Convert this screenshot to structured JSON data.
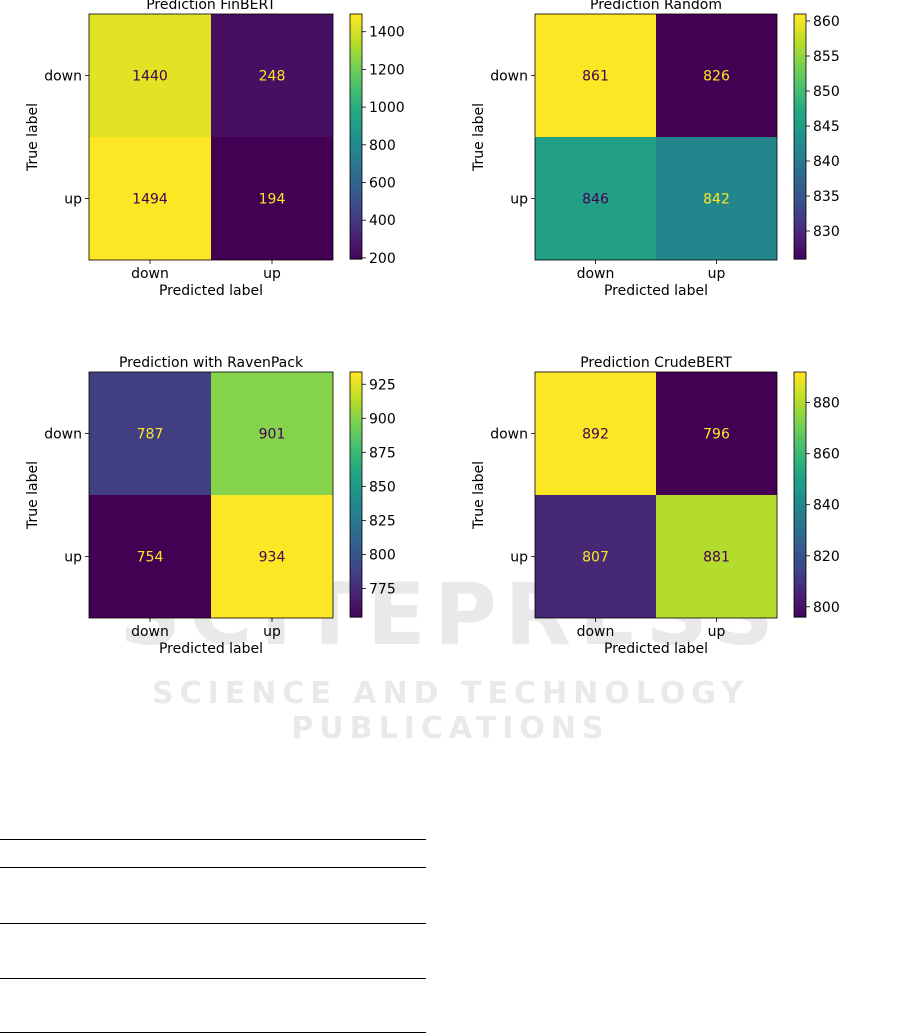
{
  "watermark": {
    "logo_text": "SCITEPRESS",
    "tagline": "SCIENCE AND TECHNOLOGY PUBLICATIONS"
  },
  "chart_data": [
    {
      "type": "heatmap",
      "title": "Prediction FinBERT",
      "xlabel": "Predicted label",
      "ylabel": "True label",
      "x_categories": [
        "down",
        "up"
      ],
      "y_categories": [
        "down",
        "up"
      ],
      "values": [
        [
          1440,
          248
        ],
        [
          1494,
          194
        ]
      ],
      "colorbar": {
        "min": 194,
        "max": 1494,
        "ticks": [
          200,
          400,
          600,
          800,
          1000,
          1200,
          1400
        ]
      },
      "colormap": "viridis"
    },
    {
      "type": "heatmap",
      "title": "Prediction Random",
      "xlabel": "Predicted label",
      "ylabel": "True label",
      "x_categories": [
        "down",
        "up"
      ],
      "y_categories": [
        "down",
        "up"
      ],
      "values": [
        [
          861,
          826
        ],
        [
          846,
          842
        ]
      ],
      "colorbar": {
        "min": 826,
        "max": 861,
        "ticks": [
          830,
          835,
          840,
          845,
          850,
          855,
          860
        ]
      },
      "colormap": "viridis"
    },
    {
      "type": "heatmap",
      "title": "Prediction with RavenPack",
      "xlabel": "Predicted label",
      "ylabel": "True label",
      "x_categories": [
        "down",
        "up"
      ],
      "y_categories": [
        "down",
        "up"
      ],
      "values": [
        [
          787,
          901
        ],
        [
          754,
          934
        ]
      ],
      "colorbar": {
        "min": 754,
        "max": 934,
        "ticks": [
          775,
          800,
          825,
          850,
          875,
          900,
          925
        ]
      },
      "colormap": "viridis"
    },
    {
      "type": "heatmap",
      "title": "Prediction CrudeBERT",
      "xlabel": "Predicted label",
      "ylabel": "True label",
      "x_categories": [
        "down",
        "up"
      ],
      "y_categories": [
        "down",
        "up"
      ],
      "values": [
        [
          892,
          796
        ],
        [
          807,
          881
        ]
      ],
      "colorbar": {
        "min": 796,
        "max": 892,
        "ticks": [
          800,
          820,
          840,
          860,
          880
        ]
      },
      "colormap": "viridis"
    }
  ]
}
